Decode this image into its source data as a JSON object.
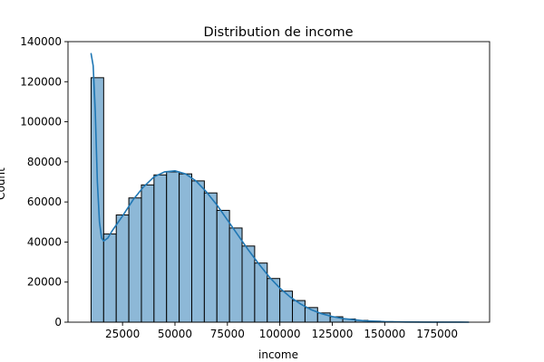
{
  "chart_data": {
    "type": "bar",
    "title": "Distribution de income",
    "xlabel": "income",
    "ylabel": "Count",
    "xlim": [
      -1000,
      200000
    ],
    "ylim": [
      0,
      140000
    ],
    "xticks": [
      25000,
      50000,
      75000,
      100000,
      125000,
      150000,
      175000
    ],
    "yticks": [
      0,
      20000,
      40000,
      60000,
      80000,
      100000,
      120000,
      140000
    ],
    "grid": false,
    "bin_edges": [
      10000,
      16000,
      22000,
      28000,
      34000,
      40000,
      46000,
      52000,
      58000,
      64000,
      70000,
      76000,
      82000,
      88000,
      94000,
      100000,
      106000,
      112000,
      118000,
      124000,
      130000,
      136000,
      142000,
      148000,
      154000,
      160000,
      166000,
      172000,
      178000,
      184000,
      190000
    ],
    "counts": [
      122000,
      44000,
      53500,
      62000,
      68500,
      73500,
      75000,
      74000,
      70500,
      64500,
      55800,
      47000,
      38000,
      29500,
      21800,
      15500,
      10800,
      7300,
      4600,
      2700,
      1600,
      900,
      500,
      250,
      150,
      80,
      50,
      20,
      10,
      5
    ],
    "kde": {
      "x": [
        10000,
        11000,
        12000,
        13000,
        14000,
        15000,
        16000,
        18000,
        20000,
        25000,
        30000,
        35000,
        40000,
        45000,
        50000,
        55000,
        60000,
        65000,
        70000,
        75000,
        80000,
        85000,
        90000,
        95000,
        100000,
        105000,
        110000,
        115000,
        120000,
        125000,
        130000,
        140000,
        150000,
        160000,
        170000,
        180000,
        190000
      ],
      "y": [
        134000,
        128000,
        105000,
        70000,
        50000,
        42000,
        40500,
        42000,
        45500,
        53000,
        61000,
        67500,
        72500,
        75000,
        75500,
        74000,
        70500,
        65000,
        58500,
        51000,
        43500,
        36000,
        29000,
        22500,
        17000,
        12500,
        9000,
        6200,
        4200,
        2800,
        1800,
        700,
        250,
        100,
        40,
        15,
        5
      ]
    },
    "colors": {
      "bar_fill": "#8db8d7",
      "bar_edge": "#000000",
      "kde_line": "#1f77b4"
    }
  }
}
